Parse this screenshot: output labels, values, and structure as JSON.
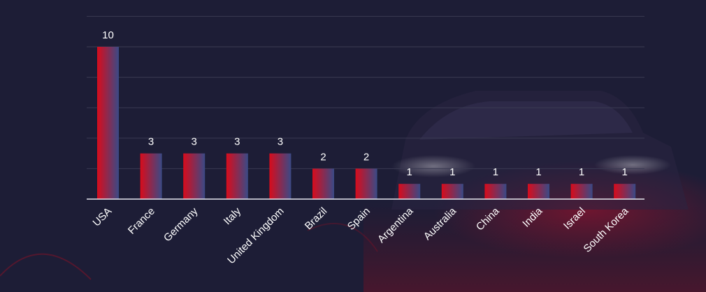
{
  "chart_data": {
    "type": "bar",
    "categories": [
      "USA",
      "France",
      "Germany",
      "Italy",
      "United Kingdom",
      "Brazil",
      "Spain",
      "Argentina",
      "Australia",
      "China",
      "India",
      "Israel",
      "South Korea"
    ],
    "values": [
      10,
      3,
      3,
      3,
      3,
      2,
      2,
      1,
      1,
      1,
      1,
      1,
      1
    ],
    "title": "",
    "xlabel": "",
    "ylabel": "",
    "ylim": [
      0,
      12
    ],
    "grid": true,
    "legend": "none",
    "colors": {
      "bar_start": "#d80c1c",
      "bar_end": "#3a4a86",
      "background": "#1d1d36",
      "gridline": "#3a3a52",
      "axis": "#e8e8f0",
      "text": "#ffffff"
    }
  }
}
